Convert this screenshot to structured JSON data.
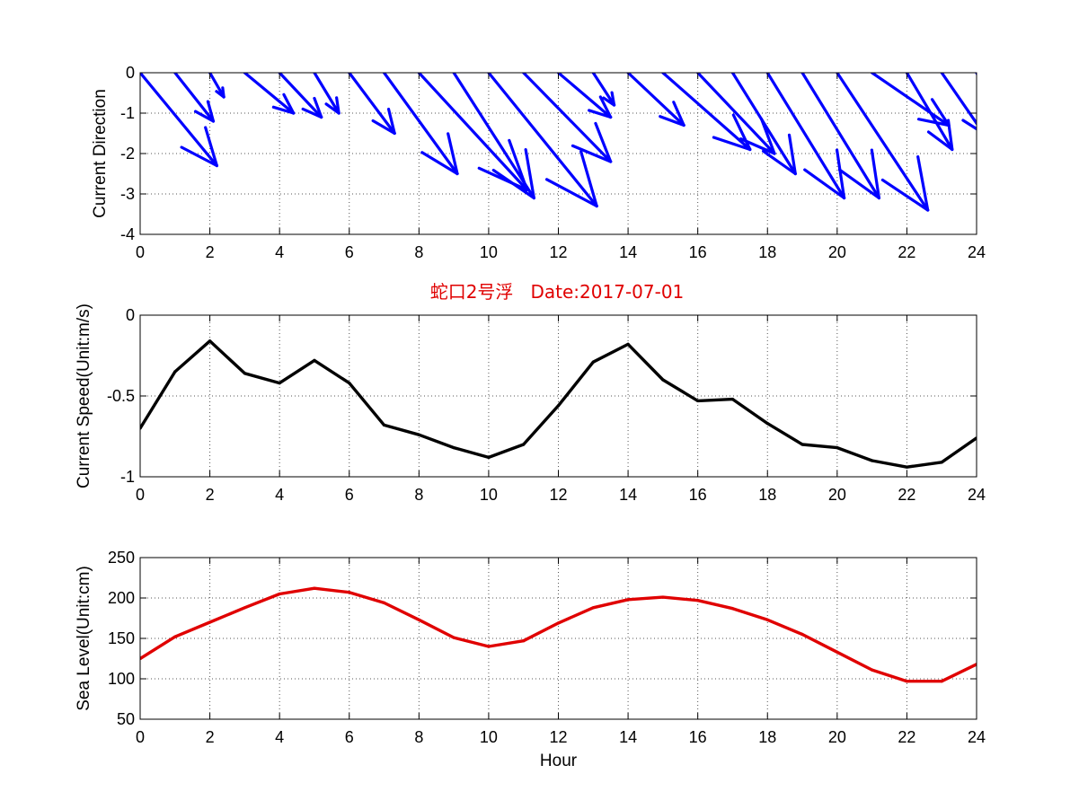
{
  "title": "蛇口2号浮   Date:2017-07-01",
  "colors": {
    "title": "#e00000",
    "direction": "#0000ff",
    "speed": "#000000",
    "sea_level": "#e00000",
    "grid": "#555555",
    "axes": "#000000"
  },
  "chart_data": [
    {
      "type": "quiver",
      "name": "direction",
      "ylabel": "Current Direction",
      "xlabel": "",
      "xlim": [
        0,
        24
      ],
      "ylim": [
        -4,
        0
      ],
      "xticks": [
        0,
        2,
        4,
        6,
        8,
        10,
        12,
        14,
        16,
        18,
        20,
        22,
        24
      ],
      "yticks": [
        0,
        -1,
        -2,
        -3,
        -4
      ],
      "grid": true,
      "x": [
        0,
        1,
        2,
        3,
        4,
        5,
        6,
        7,
        8,
        9,
        10,
        11,
        12,
        13,
        14,
        15,
        16,
        17,
        18,
        19,
        20,
        21,
        22,
        23,
        24
      ],
      "u": [
        2.2,
        1.1,
        0.4,
        1.4,
        1.2,
        0.7,
        1.3,
        2.1,
        3.1,
        2.3,
        3.1,
        2.5,
        1.5,
        0.6,
        1.6,
        2.5,
        2.2,
        1.8,
        2.2,
        2.2,
        2.6,
        2.2,
        1.3,
        1.2,
        0.5
      ],
      "v": [
        -2.3,
        -1.2,
        -0.6,
        -1.0,
        -1.1,
        -1.0,
        -1.5,
        -2.5,
        -2.9,
        -3.1,
        -3.3,
        -2.2,
        -1.1,
        -0.8,
        -1.3,
        -1.9,
        -2.0,
        -2.5,
        -3.1,
        -3.1,
        -3.4,
        -1.3,
        -1.9,
        -1.5,
        -0.9
      ]
    },
    {
      "type": "line",
      "name": "speed",
      "ylabel": "Current Speed(Unit:m/s)",
      "xlabel": "",
      "xlim": [
        0,
        24
      ],
      "ylim": [
        -1,
        0
      ],
      "xticks": [
        0,
        2,
        4,
        6,
        8,
        10,
        12,
        14,
        16,
        18,
        20,
        22,
        24
      ],
      "yticks": [
        0,
        -0.5,
        -1
      ],
      "ytick_labels": [
        "0",
        "-0.5",
        "-1"
      ],
      "grid": true,
      "x": [
        0,
        1,
        2,
        3,
        4,
        5,
        6,
        7,
        8,
        9,
        10,
        11,
        12,
        13,
        14,
        15,
        16,
        17,
        18,
        19,
        20,
        21,
        22,
        23,
        24
      ],
      "y": [
        -0.7,
        -0.35,
        -0.16,
        -0.36,
        -0.42,
        -0.28,
        -0.42,
        -0.68,
        -0.74,
        -0.82,
        -0.88,
        -0.8,
        -0.56,
        -0.29,
        -0.18,
        -0.4,
        -0.53,
        -0.52,
        -0.67,
        -0.8,
        -0.82,
        -0.9,
        -0.94,
        -0.91,
        -0.76
      ]
    },
    {
      "type": "line",
      "name": "sea_level",
      "ylabel": "Sea Level(Unit:cm)",
      "xlabel": "Hour",
      "xlim": [
        0,
        24
      ],
      "ylim": [
        50,
        250
      ],
      "xticks": [
        0,
        2,
        4,
        6,
        8,
        10,
        12,
        14,
        16,
        18,
        20,
        22,
        24
      ],
      "yticks": [
        250,
        200,
        150,
        100,
        50
      ],
      "grid": true,
      "x": [
        0,
        1,
        2,
        3,
        4,
        5,
        6,
        7,
        8,
        9,
        10,
        11,
        12,
        13,
        14,
        15,
        16,
        17,
        18,
        19,
        20,
        21,
        22,
        23,
        24
      ],
      "y": [
        125,
        152,
        170,
        188,
        205,
        212,
        207,
        194,
        173,
        151,
        140,
        147,
        169,
        188,
        198,
        201,
        197,
        187,
        173,
        155,
        133,
        111,
        97,
        97,
        118
      ]
    }
  ]
}
